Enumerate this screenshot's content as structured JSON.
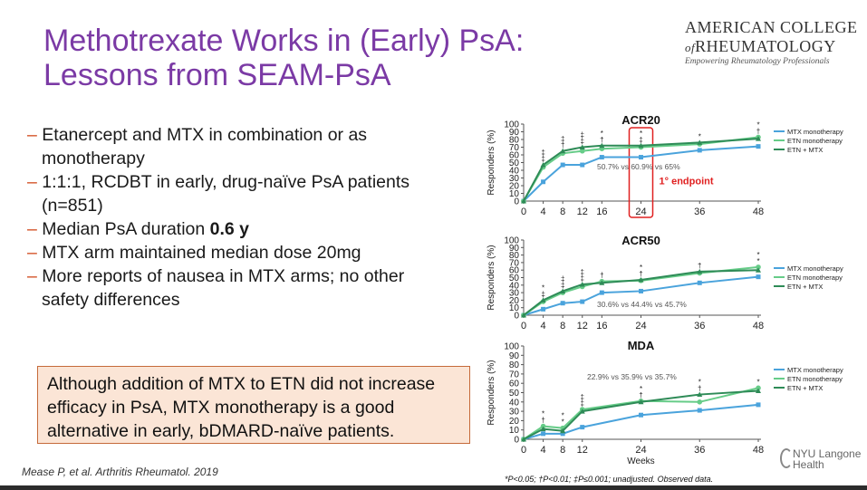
{
  "slide": {
    "title_line1": "Methotrexate Works in (Early) PsA:",
    "title_line2": "Lessons from SEAM-PsA",
    "logo": {
      "line1": "AMERICAN COLLEGE",
      "line2_prefix": "of",
      "line2": "RHEUMATOLOGY",
      "tagline": "Empowering Rheumatology Professionals"
    },
    "bullets": [
      {
        "line1": "Etanercept and MTX in combination or as",
        "line2": "monotherapy"
      },
      {
        "line1": "1:1:1, RCDBT in early, drug-naïve PsA patients",
        "line2": "(n=851)"
      },
      {
        "line1": "Median PsA duration ",
        "bold": "0.6 y"
      },
      {
        "line1": "MTX arm maintained median dose 20mg"
      },
      {
        "line1": "More reports of nausea in MTX arms; no other",
        "line2": "safety differences"
      }
    ],
    "bullet_dash": "–",
    "callout": "Although addition of MTX to ETN did not increase efficacy in PsA, MTX monotherapy is a good alternative in early, bDMARD-naïve patients.",
    "reference": "Mease P, et al. Arthritis Rheumatol. 2019",
    "footnote": "*P<0.05; †P<0.01; ‡P≤0.001; unadjusted. Observed data.",
    "nyu_line1": "NYU Langone",
    "nyu_line2": "Health"
  },
  "colors": {
    "title": "#7b3aa5",
    "mtx": "#4aa3dc",
    "etn": "#66cc88",
    "combo": "#2e8b57",
    "endpoint": "#e02020",
    "callout_bg": "#fbe5d6"
  },
  "chart_data": [
    {
      "type": "line",
      "title": "ACR20",
      "ylabel": "Responders (%)",
      "xlabel": "",
      "ylim": [
        0,
        100
      ],
      "yticks": [
        0,
        10,
        20,
        30,
        40,
        50,
        60,
        70,
        80,
        90,
        100
      ],
      "xticks": [
        0,
        4,
        8,
        12,
        16,
        24,
        36,
        48
      ],
      "annotation": "50.7% vs 60.9% vs 65%",
      "endpoint_label": "1° endpoint",
      "endpoint_week": 24,
      "legend_position": "right",
      "series": [
        {
          "name": "MTX monotherapy",
          "x": [
            0,
            4,
            8,
            12,
            16,
            24,
            36,
            48
          ],
          "values": [
            0,
            25,
            47,
            47,
            57,
            57,
            66,
            71
          ]
        },
        {
          "name": "ETN monotherapy",
          "x": [
            0,
            4,
            8,
            12,
            16,
            24,
            36,
            48
          ],
          "values": [
            0,
            44,
            62,
            65,
            68,
            70,
            74,
            83
          ]
        },
        {
          "name": "ETN + MTX",
          "x": [
            0,
            4,
            8,
            12,
            16,
            24,
            36,
            48
          ],
          "values": [
            0,
            47,
            65,
            70,
            72,
            72,
            76,
            81
          ]
        }
      ],
      "markers": [
        {
          "x": 4,
          "text": "‡"
        },
        {
          "x": 4,
          "text": "‡"
        },
        {
          "x": 8,
          "text": "†"
        },
        {
          "x": 8,
          "text": "‡"
        },
        {
          "x": 12,
          "text": "‡"
        },
        {
          "x": 12,
          "text": "‡"
        },
        {
          "x": 16,
          "text": "†"
        },
        {
          "x": 16,
          "text": "*"
        },
        {
          "x": 24,
          "text": "‡"
        },
        {
          "x": 24,
          "text": "*"
        },
        {
          "x": 36,
          "text": "*"
        },
        {
          "x": 48,
          "text": "†"
        },
        {
          "x": 48,
          "text": "*"
        }
      ]
    },
    {
      "type": "line",
      "title": "ACR50",
      "ylabel": "Responders (%)",
      "xlabel": "",
      "ylim": [
        0,
        100
      ],
      "yticks": [
        0,
        10,
        20,
        30,
        40,
        50,
        60,
        70,
        80,
        90,
        100
      ],
      "xticks": [
        0,
        4,
        8,
        12,
        16,
        24,
        36,
        48
      ],
      "annotation": "30.6% vs 44.4% vs 45.7%",
      "legend_position": "right",
      "series": [
        {
          "name": "MTX monotherapy",
          "x": [
            0,
            4,
            8,
            12,
            16,
            24,
            36,
            48
          ],
          "values": [
            0,
            8,
            16,
            18,
            30,
            32,
            43,
            51
          ]
        },
        {
          "name": "ETN monotherapy",
          "x": [
            0,
            4,
            8,
            12,
            16,
            24,
            36,
            48
          ],
          "values": [
            0,
            18,
            30,
            38,
            45,
            46,
            56,
            64
          ]
        },
        {
          "name": "ETN + MTX",
          "x": [
            0,
            4,
            8,
            12,
            16,
            24,
            36,
            48
          ],
          "values": [
            0,
            20,
            32,
            41,
            43,
            47,
            58,
            60
          ]
        }
      ],
      "markers": [
        {
          "x": 4,
          "text": "‡"
        },
        {
          "x": 4,
          "text": "*"
        },
        {
          "x": 8,
          "text": "‡"
        },
        {
          "x": 8,
          "text": "‡"
        },
        {
          "x": 12,
          "text": "‡"
        },
        {
          "x": 12,
          "text": "‡"
        },
        {
          "x": 16,
          "text": "†"
        },
        {
          "x": 24,
          "text": "†"
        },
        {
          "x": 24,
          "text": "*"
        },
        {
          "x": 36,
          "text": "†"
        },
        {
          "x": 48,
          "text": "*"
        },
        {
          "x": 48,
          "text": "*"
        }
      ]
    },
    {
      "type": "line",
      "title": "MDA",
      "ylabel": "Responders (%)",
      "xlabel": "Weeks",
      "ylim": [
        0,
        100
      ],
      "yticks": [
        0,
        10,
        20,
        30,
        40,
        50,
        60,
        70,
        80,
        90,
        100
      ],
      "xticks": [
        0,
        4,
        8,
        12,
        24,
        36,
        48
      ],
      "annotation": "22.9% vs 35.9% vs 35.7%",
      "legend_position": "right",
      "series": [
        {
          "name": "MTX monotherapy",
          "x": [
            0,
            4,
            8,
            12,
            24,
            36,
            48
          ],
          "values": [
            0,
            6,
            6,
            13,
            26,
            31,
            37
          ]
        },
        {
          "name": "ETN monotherapy",
          "x": [
            0,
            4,
            8,
            12,
            24,
            36,
            48
          ],
          "values": [
            0,
            14,
            12,
            32,
            41,
            40,
            55
          ]
        },
        {
          "name": "ETN + MTX",
          "x": [
            0,
            4,
            8,
            12,
            24,
            36,
            48
          ],
          "values": [
            0,
            11,
            9,
            30,
            40,
            48,
            52
          ]
        }
      ],
      "markers": [
        {
          "x": 4,
          "text": "†"
        },
        {
          "x": 4,
          "text": "*"
        },
        {
          "x": 8,
          "text": "*"
        },
        {
          "x": 8,
          "text": "*"
        },
        {
          "x": 12,
          "text": "‡"
        },
        {
          "x": 12,
          "text": "‡"
        },
        {
          "x": 24,
          "text": "†"
        },
        {
          "x": 24,
          "text": "*"
        },
        {
          "x": 36,
          "text": "†"
        },
        {
          "x": 36,
          "text": "*"
        },
        {
          "x": 48,
          "text": "*"
        }
      ]
    }
  ]
}
